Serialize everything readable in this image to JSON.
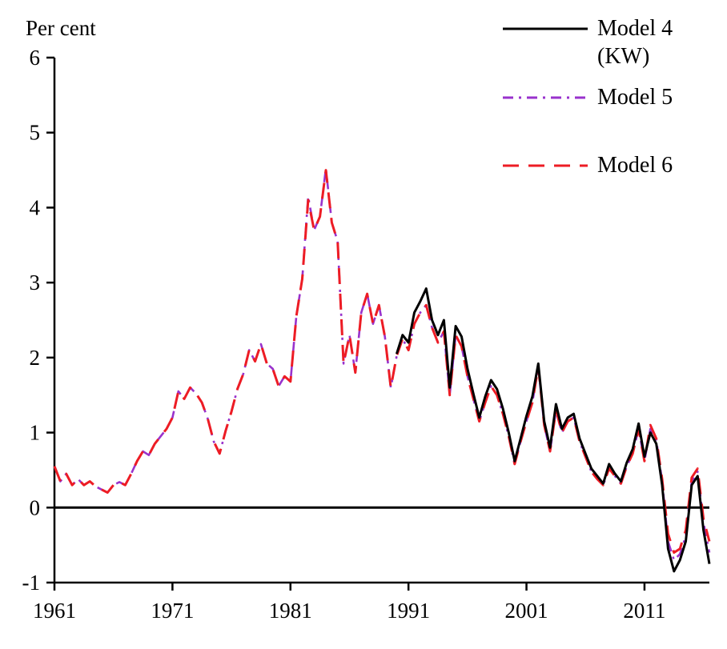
{
  "chart_data": {
    "type": "line",
    "title": "",
    "ylabel": "Per cent",
    "xlabel": "",
    "xlim": [
      1961,
      2016.5
    ],
    "ylim": [
      -1,
      6
    ],
    "yticks": [
      -1,
      0,
      1,
      2,
      3,
      4,
      5,
      6
    ],
    "xticks": [
      1961,
      1971,
      1981,
      1991,
      2001,
      2011
    ],
    "grid": false,
    "legend_position": "top-right",
    "zero_line": true,
    "x_start": 1961,
    "x_step": 0.5,
    "draw_order": [
      1,
      2,
      0
    ],
    "series": [
      {
        "name": "Model 4 (KW)",
        "color": "#000000",
        "style": "solid",
        "width": 3,
        "values": [
          null,
          null,
          null,
          null,
          null,
          null,
          null,
          null,
          null,
          null,
          null,
          null,
          null,
          null,
          null,
          null,
          null,
          null,
          null,
          null,
          null,
          null,
          null,
          null,
          null,
          null,
          null,
          null,
          null,
          null,
          null,
          null,
          null,
          null,
          null,
          null,
          null,
          null,
          null,
          null,
          null,
          null,
          null,
          null,
          null,
          null,
          null,
          null,
          null,
          null,
          null,
          null,
          null,
          null,
          null,
          null,
          null,
          null,
          2.05,
          2.3,
          2.2,
          2.6,
          2.75,
          2.92,
          2.5,
          2.3,
          2.5,
          1.6,
          2.42,
          2.28,
          1.85,
          1.52,
          1.2,
          1.48,
          1.7,
          1.58,
          1.32,
          1.0,
          0.62,
          0.92,
          1.22,
          1.48,
          1.92,
          1.15,
          0.8,
          1.38,
          1.05,
          1.2,
          1.25,
          0.92,
          0.72,
          0.52,
          0.42,
          0.32,
          0.58,
          0.45,
          0.35,
          0.6,
          0.78,
          1.12,
          0.68,
          1.0,
          0.85,
          0.3,
          -0.55,
          -0.85,
          -0.7,
          -0.45,
          0.3,
          0.42,
          -0.3,
          -0.75
        ]
      },
      {
        "name": "Model 5",
        "color": "#9932CC",
        "style": "dashdot",
        "width": 2.6,
        "values": [
          0.55,
          0.35,
          0.45,
          0.3,
          0.38,
          0.3,
          0.35,
          0.28,
          0.24,
          0.2,
          0.3,
          0.34,
          0.3,
          0.45,
          0.62,
          0.75,
          0.7,
          0.85,
          0.95,
          1.05,
          1.2,
          1.55,
          1.45,
          1.6,
          1.52,
          1.4,
          1.18,
          0.88,
          0.72,
          1.02,
          1.28,
          1.58,
          1.78,
          2.1,
          1.95,
          2.18,
          1.92,
          1.85,
          1.62,
          1.75,
          1.68,
          2.55,
          3.05,
          4.15,
          3.7,
          3.88,
          4.52,
          3.8,
          3.55,
          1.92,
          2.3,
          1.8,
          2.6,
          2.85,
          2.45,
          2.7,
          2.28,
          1.6,
          2.02,
          2.25,
          2.1,
          2.45,
          2.6,
          2.7,
          2.4,
          2.2,
          2.35,
          1.5,
          2.3,
          2.15,
          1.75,
          1.45,
          1.15,
          1.4,
          1.62,
          1.5,
          1.25,
          0.95,
          0.58,
          0.88,
          1.15,
          1.4,
          1.88,
          1.1,
          0.75,
          1.3,
          1.0,
          1.15,
          1.2,
          0.88,
          0.68,
          0.48,
          0.38,
          0.3,
          0.52,
          0.42,
          0.32,
          0.55,
          0.72,
          1.05,
          0.62,
          1.05,
          0.9,
          0.35,
          -0.45,
          -0.7,
          -0.62,
          -0.38,
          0.35,
          0.48,
          -0.2,
          -0.6
        ]
      },
      {
        "name": "Model 6",
        "color": "#ED1C24",
        "style": "longdash",
        "width": 3,
        "values": [
          0.55,
          0.35,
          0.45,
          0.3,
          0.38,
          0.3,
          0.35,
          0.28,
          0.24,
          0.2,
          0.3,
          0.34,
          0.3,
          0.45,
          0.62,
          0.75,
          0.7,
          0.85,
          0.95,
          1.05,
          1.2,
          1.55,
          1.45,
          1.6,
          1.52,
          1.4,
          1.18,
          0.88,
          0.72,
          1.02,
          1.28,
          1.58,
          1.78,
          2.1,
          1.95,
          2.18,
          1.92,
          1.85,
          1.62,
          1.75,
          1.68,
          2.55,
          3.05,
          4.1,
          3.7,
          3.88,
          4.5,
          3.8,
          3.55,
          1.92,
          2.3,
          1.8,
          2.6,
          2.85,
          2.45,
          2.7,
          2.28,
          1.6,
          2.02,
          2.25,
          2.1,
          2.45,
          2.6,
          2.7,
          2.4,
          2.2,
          2.35,
          1.5,
          2.3,
          2.15,
          1.75,
          1.45,
          1.15,
          1.4,
          1.62,
          1.5,
          1.25,
          0.95,
          0.58,
          0.88,
          1.15,
          1.4,
          1.88,
          1.1,
          0.75,
          1.3,
          1.0,
          1.15,
          1.2,
          0.88,
          0.68,
          0.48,
          0.38,
          0.3,
          0.52,
          0.42,
          0.32,
          0.55,
          0.72,
          1.05,
          0.62,
          1.1,
          0.92,
          0.38,
          -0.35,
          -0.6,
          -0.55,
          -0.3,
          0.4,
          0.52,
          -0.15,
          -0.45
        ]
      }
    ]
  }
}
